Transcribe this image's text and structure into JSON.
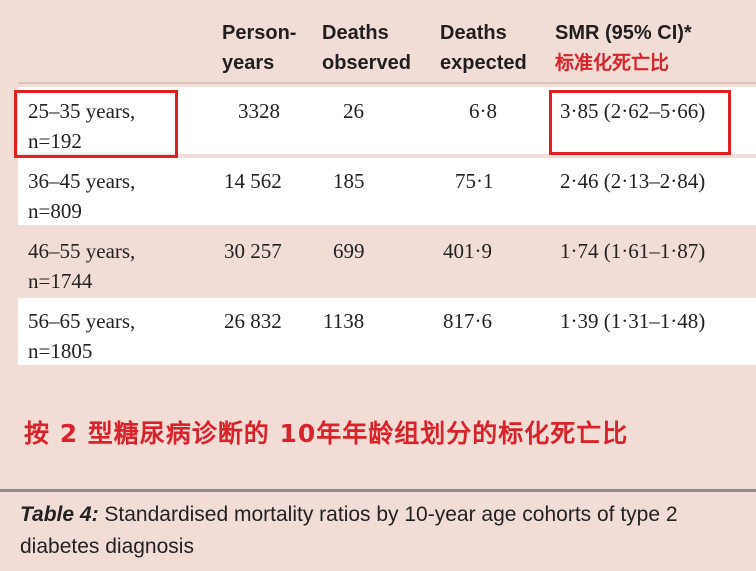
{
  "table": {
    "headers": {
      "person_years": [
        "Person-",
        "years"
      ],
      "deaths_observed": [
        "Deaths",
        "observed"
      ],
      "deaths_expected": [
        "Deaths",
        "expected"
      ],
      "smr": "SMR (95% CI)*",
      "smr_cn": "标准化死亡比"
    },
    "rows": [
      {
        "age": "25–35 years,",
        "n": "n=192",
        "person_years": "3328",
        "deaths_observed": "26",
        "deaths_expected": "6·8",
        "smr": "3·85 (2·62–5·66)"
      },
      {
        "age": "36–45 years,",
        "n": "n=809",
        "person_years": "14 562",
        "deaths_observed": "185",
        "deaths_expected": "75·1",
        "smr": "2·46 (2·13–2·84)"
      },
      {
        "age": "46–55 years,",
        "n": "n=1744",
        "person_years": "30 257",
        "deaths_observed": "699",
        "deaths_expected": "401·9",
        "smr": "1·74 (1·61–1·87)"
      },
      {
        "age": "56–65 years,",
        "n": "n=1805",
        "person_years": "26 832",
        "deaths_observed": "1138",
        "deaths_expected": "817·6",
        "smr": "1·39 (1·31–1·48)"
      }
    ]
  },
  "annotation": "按 2 型糖尿病诊断的 10年年龄组划分的标化死亡比",
  "caption": {
    "label": "Table 4:",
    "text": " Standardised mortality ratios by 10-year age cohorts of type 2 diabetes diagnosis"
  },
  "colors": {
    "background": "#f2dcd6",
    "highlight_red": "#e02020",
    "annotation_red": "#d8232a"
  }
}
